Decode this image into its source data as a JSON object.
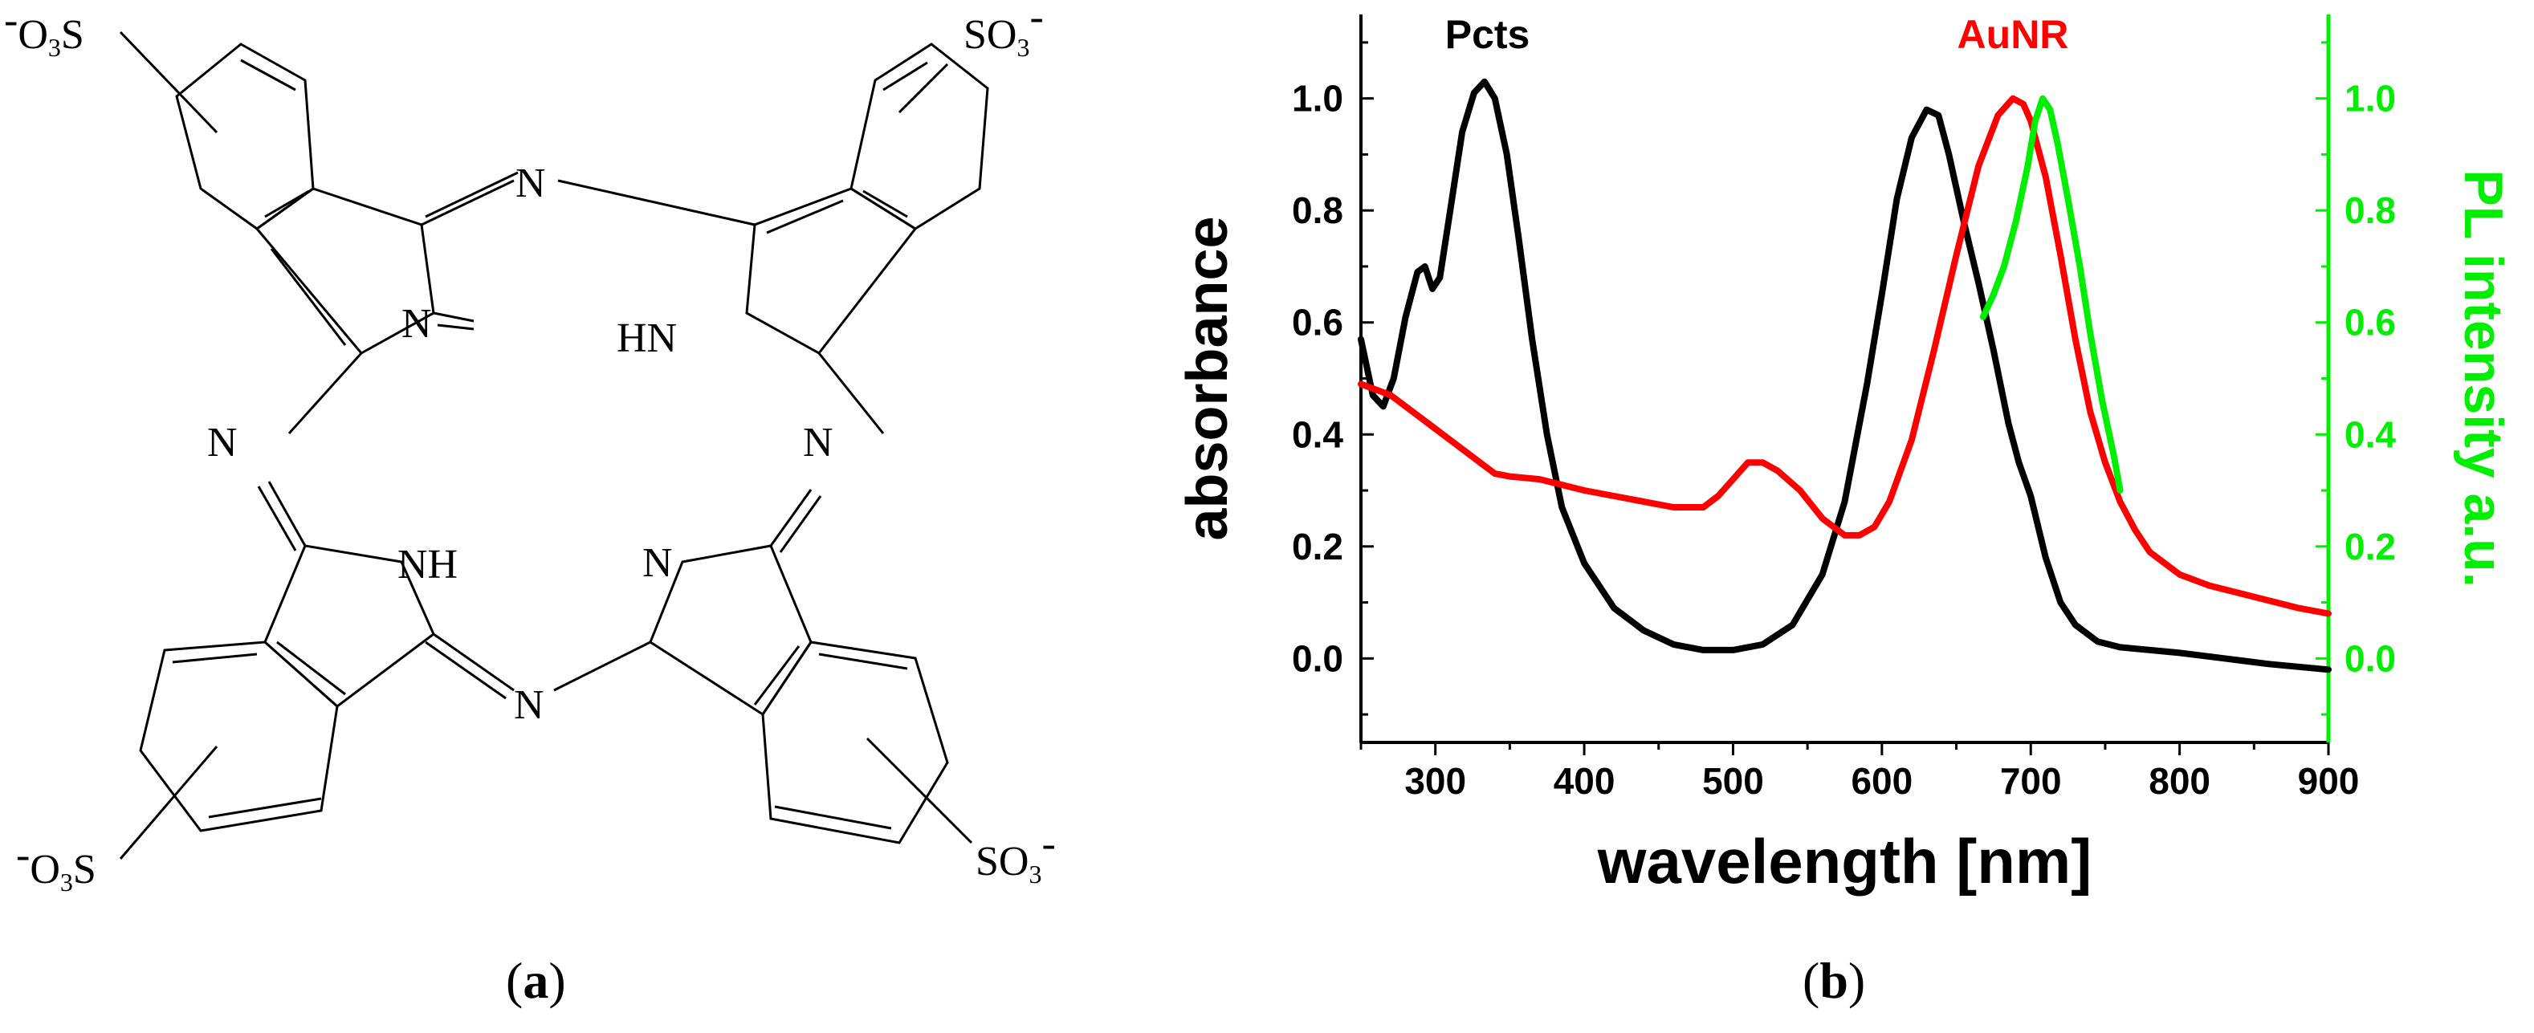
{
  "structure": {
    "atoms": {
      "n_bridge_top": "N",
      "n_bridge_left": "N",
      "n_bridge_right": "N",
      "n_bridge_bottom": "N",
      "n_topleft": "N",
      "n_topright": "HN",
      "n_bottomleft": "NH",
      "n_bottomright": "N"
    },
    "sulfonate_topleft": {
      "minus": "-",
      "base": "O",
      "sub": "3",
      "tail": "S"
    },
    "sulfonate_topright": {
      "head": "SO",
      "sub": "3",
      "minus": "-"
    },
    "sulfonate_bottomleft": {
      "minus": "-",
      "base": "O",
      "sub": "3",
      "tail": "S"
    },
    "sulfonate_bottomright": {
      "head": "SO",
      "sub": "3",
      "minus": "-"
    }
  },
  "panel_labels": {
    "a": {
      "open": "(",
      "letter": "a",
      "close": ")"
    },
    "b": {
      "open": "(",
      "letter": "b",
      "close": ")"
    }
  },
  "colors": {
    "pcts": "#000000",
    "aunr": "#ff0000",
    "pl": "#00ee00"
  },
  "chart_data": {
    "type": "line",
    "xlabel": "wavelength [nm]",
    "ylabel": "absorbance",
    "y2label": "PL intensity a.u.",
    "xlim": [
      250,
      900
    ],
    "ylim": [
      -0.15,
      1.15
    ],
    "y2lim": [
      -0.15,
      1.15
    ],
    "xticks": [
      300,
      400,
      500,
      600,
      700,
      800,
      900
    ],
    "yticks": [
      0.0,
      0.2,
      0.4,
      0.6,
      0.8,
      1.0
    ],
    "y2ticks": [
      0.0,
      0.2,
      0.4,
      0.6,
      0.8,
      1.0
    ],
    "xtick_labels": [
      "300",
      "400",
      "500",
      "600",
      "700",
      "800",
      "900"
    ],
    "ytick_labels": [
      "0.0",
      "0.2",
      "0.4",
      "0.6",
      "0.8",
      "1.0"
    ],
    "y2tick_labels": [
      "0.0",
      "0.2",
      "0.4",
      "0.6",
      "0.8",
      "1.0"
    ],
    "grid": false,
    "legend": "none",
    "annotations": [
      {
        "text": "Pcts",
        "x": 335,
        "y": 1.09,
        "color": "#000000"
      },
      {
        "text": "AuNR",
        "x": 688,
        "y": 1.09,
        "color": "#ff0000"
      }
    ],
    "series": [
      {
        "name": "Pcts",
        "axis": "left",
        "color": "#000000",
        "x": [
          250,
          258,
          265,
          272,
          280,
          288,
          293,
          298,
          303,
          310,
          318,
          326,
          333,
          340,
          348,
          356,
          365,
          375,
          385,
          400,
          420,
          440,
          460,
          480,
          500,
          520,
          540,
          560,
          575,
          590,
          600,
          610,
          620,
          630,
          638,
          645,
          655,
          665,
          675,
          685,
          692,
          700,
          710,
          720,
          730,
          745,
          760,
          780,
          800,
          830,
          860,
          900
        ],
        "y": [
          0.57,
          0.47,
          0.45,
          0.5,
          0.61,
          0.69,
          0.7,
          0.66,
          0.68,
          0.8,
          0.94,
          1.01,
          1.03,
          1.0,
          0.9,
          0.75,
          0.57,
          0.4,
          0.27,
          0.17,
          0.09,
          0.05,
          0.025,
          0.015,
          0.015,
          0.025,
          0.06,
          0.15,
          0.28,
          0.49,
          0.65,
          0.82,
          0.93,
          0.98,
          0.97,
          0.9,
          0.78,
          0.67,
          0.55,
          0.42,
          0.35,
          0.29,
          0.18,
          0.1,
          0.06,
          0.03,
          0.02,
          0.015,
          0.01,
          0.0,
          -0.01,
          -0.02
        ]
      },
      {
        "name": "AuNR",
        "axis": "left",
        "color": "#ff0000",
        "x": [
          250,
          270,
          290,
          310,
          330,
          340,
          350,
          370,
          400,
          430,
          460,
          480,
          490,
          500,
          510,
          520,
          530,
          545,
          560,
          575,
          585,
          595,
          605,
          620,
          635,
          650,
          665,
          678,
          688,
          695,
          700,
          710,
          720,
          730,
          740,
          750,
          760,
          770,
          780,
          800,
          820,
          850,
          880,
          900
        ],
        "y": [
          0.49,
          0.47,
          0.43,
          0.39,
          0.35,
          0.33,
          0.325,
          0.32,
          0.3,
          0.285,
          0.27,
          0.27,
          0.29,
          0.32,
          0.35,
          0.35,
          0.335,
          0.3,
          0.25,
          0.22,
          0.22,
          0.235,
          0.28,
          0.39,
          0.55,
          0.72,
          0.88,
          0.97,
          1.0,
          0.99,
          0.96,
          0.86,
          0.72,
          0.57,
          0.44,
          0.35,
          0.28,
          0.23,
          0.19,
          0.15,
          0.13,
          0.11,
          0.09,
          0.08
        ]
      },
      {
        "name": "PL",
        "axis": "right",
        "color": "#00ee00",
        "x": [
          668,
          675,
          682,
          690,
          698,
          703,
          708,
          713,
          718,
          725,
          733,
          740,
          748,
          756,
          760
        ],
        "y": [
          0.61,
          0.65,
          0.7,
          0.78,
          0.88,
          0.96,
          1.0,
          0.98,
          0.92,
          0.82,
          0.7,
          0.58,
          0.46,
          0.36,
          0.3
        ]
      }
    ]
  }
}
